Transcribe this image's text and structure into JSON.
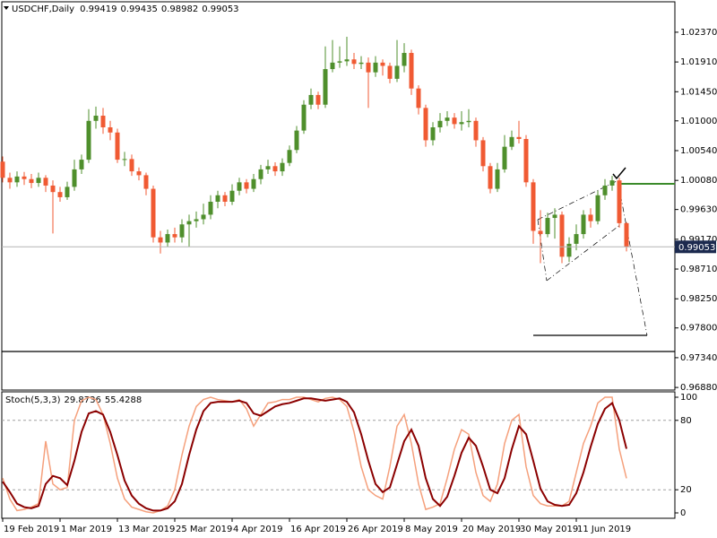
{
  "chart_data": [
    {
      "type": "candlestick",
      "title": "USDCHF,Daily",
      "categories": [
        "19 Feb 2019",
        null,
        null,
        null,
        null,
        null,
        null,
        null,
        "1 Mar 2019",
        null,
        null,
        null,
        null,
        null,
        null,
        null,
        "13 Mar 2019",
        null,
        null,
        null,
        null,
        null,
        null,
        null,
        "25 Mar 2019",
        null,
        null,
        null,
        null,
        null,
        null,
        null,
        "4 Apr 2019",
        null,
        null,
        null,
        null,
        null,
        null,
        null,
        "16 Apr 2019",
        null,
        null,
        null,
        null,
        null,
        null,
        null,
        "26 Apr 2019",
        null,
        null,
        null,
        null,
        null,
        null,
        null,
        "8 May 2019",
        null,
        null,
        null,
        null,
        null,
        null,
        null,
        "20 May 2019",
        null,
        null,
        null,
        null,
        null,
        null,
        null,
        "30 May 2019",
        null,
        null,
        null,
        null,
        null,
        null,
        null,
        "11 Jun 2019",
        null,
        null,
        null,
        null,
        null,
        null,
        null
      ],
      "open": [
        1.0037,
        1.0012,
        1.0005,
        1.0014,
        1.001,
        1.0004,
        1.0012,
        1.0,
        0.999,
        0.9982,
        0.9998,
        1.0025,
        1.004,
        1.01,
        1.0108,
        1.009,
        1.0082,
        1.004,
        1.0041,
        1.0022,
        1.0016,
        0.9995,
        0.992,
        0.9912,
        0.9925,
        0.992,
        0.994,
        0.9945,
        0.9948,
        0.9955,
        0.9975,
        0.9985,
        0.9975,
        0.9992,
        1.0005,
        0.9995,
        1.001,
        1.0025,
        1.003,
        1.0022,
        1.0035,
        1.0055,
        1.0085,
        1.0125,
        1.014,
        1.0125,
        1.018,
        1.019,
        1.0192,
        1.0195,
        1.0188,
        1.019,
        1.0175,
        1.019,
        1.0185,
        1.0165,
        1.0185,
        1.0205,
        1.015,
        1.012,
        1.007,
        1.009,
        1.01,
        1.0105,
        1.0095,
        1.0098,
        1.01,
        1.007,
        1.003,
        0.9995,
        1.0025,
        1.006,
        1.0075,
        1.0072,
        1.0005,
        0.993,
        0.9925,
        0.995,
        0.9955,
        0.989,
        0.991,
        0.9925,
        0.9955,
        0.9945,
        0.9985,
        1.0,
        1.0008,
        0.99419
      ],
      "high": [
        1.0045,
        1.002,
        1.0022,
        1.0021,
        1.0018,
        1.002,
        1.0016,
        1.0008,
        0.9998,
        1.0006,
        1.004,
        1.0048,
        1.0118,
        1.0122,
        1.012,
        1.01,
        1.0088,
        1.0052,
        1.0048,
        1.0028,
        1.002,
        1.0,
        0.993,
        0.9932,
        0.9935,
        0.9948,
        0.9955,
        0.996,
        0.9972,
        0.9985,
        0.9992,
        0.999,
        1.0002,
        1.0012,
        1.001,
        1.0018,
        1.0032,
        1.004,
        1.0036,
        1.0042,
        1.0062,
        1.0092,
        1.0132,
        1.015,
        1.0145,
        1.0215,
        1.0225,
        1.0215,
        1.023,
        1.0205,
        1.02,
        1.0198,
        1.02,
        1.0195,
        1.019,
        1.0225,
        1.022,
        1.021,
        1.0155,
        1.0125,
        1.0098,
        1.0112,
        1.0115,
        1.0112,
        1.0115,
        1.0118,
        1.0105,
        1.0075,
        1.0035,
        1.0035,
        1.0078,
        1.0085,
        1.01,
        1.0078,
        1.001,
        0.9962,
        0.9958,
        0.9965,
        0.996,
        0.992,
        0.994,
        0.9962,
        0.9965,
        0.9992,
        1.001,
        1.0015,
        1.0012,
        0.99435
      ],
      "low": [
        1.0005,
        0.9995,
        0.9998,
        1.0001,
        0.9996,
        0.9998,
        0.999,
        0.9926,
        0.9975,
        0.9978,
        0.9992,
        1.0018,
        1.0035,
        1.0088,
        1.008,
        1.007,
        1.0035,
        1.003,
        1.0015,
        1.0008,
        0.9985,
        0.9912,
        0.9895,
        0.9905,
        0.9912,
        0.9912,
        0.9905,
        0.9935,
        0.994,
        0.9948,
        0.9965,
        0.9968,
        0.997,
        0.9985,
        0.9988,
        0.999,
        1.0002,
        1.0018,
        1.0015,
        1.0015,
        1.003,
        1.005,
        1.008,
        1.0118,
        1.0118,
        1.012,
        1.0175,
        1.0182,
        1.0185,
        1.018,
        1.018,
        1.012,
        1.0168,
        1.017,
        1.0158,
        1.016,
        1.0175,
        1.014,
        1.011,
        1.006,
        1.0062,
        1.0082,
        1.0092,
        1.0088,
        1.0085,
        1.009,
        1.006,
        1.0022,
        0.9988,
        0.999,
        1.002,
        1.0055,
        1.0065,
        0.9998,
        0.991,
        0.988,
        0.992,
        0.9918,
        0.988,
        0.9882,
        0.99,
        0.9918,
        0.9935,
        0.994,
        0.9978,
        0.9992,
        0.9935,
        0.98982
      ],
      "close": [
        1.0012,
        1.0005,
        1.0014,
        1.001,
        1.0004,
        1.0012,
        1.0,
        0.999,
        0.9982,
        0.9998,
        1.0025,
        1.004,
        1.01,
        1.0108,
        1.009,
        1.0082,
        1.004,
        1.0041,
        1.0022,
        1.0016,
        0.9995,
        0.992,
        0.9912,
        0.9925,
        0.992,
        0.994,
        0.9945,
        0.9948,
        0.9955,
        0.9975,
        0.9985,
        0.9975,
        0.9992,
        1.0005,
        0.9995,
        1.001,
        1.0025,
        1.003,
        1.0022,
        1.0035,
        1.0055,
        1.0085,
        1.0125,
        1.014,
        1.0125,
        1.018,
        1.019,
        1.0192,
        1.0195,
        1.0188,
        1.019,
        1.0175,
        1.019,
        1.0185,
        1.0165,
        1.0185,
        1.0205,
        1.015,
        1.012,
        1.007,
        1.009,
        1.01,
        1.0105,
        1.0095,
        1.0098,
        1.01,
        1.007,
        1.003,
        0.9995,
        1.0025,
        1.006,
        1.0075,
        1.0072,
        1.0005,
        0.993,
        0.9925,
        0.995,
        0.9955,
        0.989,
        0.991,
        0.9925,
        0.9955,
        0.9945,
        0.9985,
        1.0,
        1.0008,
        0.99419,
        0.99053
      ],
      "up_color": "#4f8f2c",
      "down_color": "#f05a33",
      "ylim": [
        0.9684,
        1.0284
      ],
      "yticks": [
        {
          "value": 1.0237,
          "label": "1.02370"
        },
        {
          "value": 1.0191,
          "label": "1.01910"
        },
        {
          "value": 1.0145,
          "label": "1.01450"
        },
        {
          "value": 1.01,
          "label": "1.01000"
        },
        {
          "value": 1.0054,
          "label": "1.00540"
        },
        {
          "value": 1.0008,
          "label": "1.00080"
        },
        {
          "value": 0.9963,
          "label": "0.99630"
        },
        {
          "value": 0.9917,
          "label": "0.99170"
        },
        {
          "value": 0.9871,
          "label": "0.98710"
        },
        {
          "value": 0.9825,
          "label": "0.98250"
        },
        {
          "value": 0.978,
          "label": "0.97800"
        },
        {
          "value": 0.9734,
          "label": "0.97340"
        },
        {
          "value": 0.9688,
          "label": "0.96880"
        }
      ]
    },
    {
      "type": "line",
      "title": "Stoch(5,3,3)",
      "series": [
        {
          "color": "#f5a07c",
          "values": [
            30,
            12,
            2,
            3,
            5,
            8,
            62,
            25,
            20,
            22,
            80,
            97,
            100,
            98,
            85,
            60,
            30,
            12,
            5,
            3,
            1,
            0,
            2,
            6,
            20,
            50,
            75,
            92,
            98,
            100,
            98,
            97,
            96,
            98,
            90,
            75,
            85,
            95,
            96,
            98,
            98,
            100,
            100,
            98,
            96,
            99,
            100,
            98,
            92,
            70,
            40,
            20,
            15,
            12,
            40,
            75,
            85,
            60,
            25,
            3,
            5,
            8,
            30,
            55,
            72,
            68,
            35,
            15,
            10,
            25,
            60,
            80,
            85,
            40,
            15,
            8,
            6,
            6,
            6,
            10,
            35,
            60,
            75,
            95,
            100,
            100,
            55,
            29.8736
          ]
        },
        {
          "color": "#8b0000",
          "values": [
            27,
            18,
            8,
            5,
            4,
            6,
            25,
            32,
            30,
            24,
            45,
            70,
            86,
            88,
            85,
            70,
            50,
            28,
            15,
            8,
            4,
            2,
            2,
            4,
            10,
            25,
            50,
            72,
            88,
            95,
            96,
            96,
            96,
            97,
            95,
            86,
            84,
            88,
            92,
            94,
            95,
            97,
            99,
            99,
            98,
            97,
            98,
            99,
            96,
            87,
            68,
            45,
            25,
            18,
            22,
            42,
            62,
            72,
            58,
            30,
            12,
            6,
            14,
            32,
            52,
            65,
            58,
            40,
            20,
            17,
            30,
            55,
            75,
            68,
            45,
            21,
            10,
            7,
            6,
            7,
            17,
            35,
            57,
            77,
            90,
            95,
            80,
            55.4288
          ]
        }
      ],
      "ylim": [
        -4.65,
        104.65
      ],
      "yticks": [
        100,
        80,
        20,
        0
      ]
    }
  ]
}
